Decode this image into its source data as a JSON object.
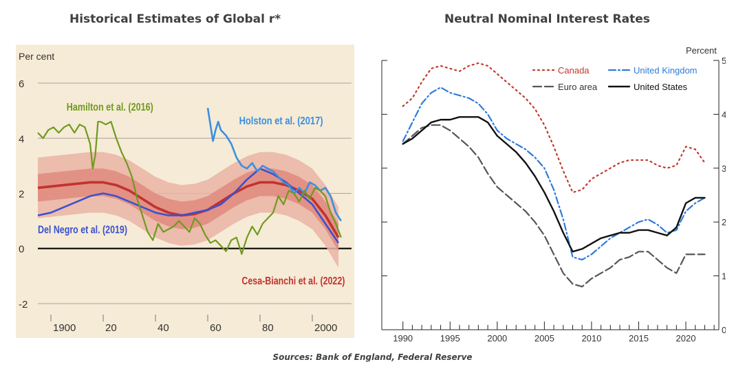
{
  "left_title": "Historical Estimates of Global r*",
  "right_title": "Neutral Nominal Interest Rates",
  "source": "Sources: Bank of England, Federal Reserve",
  "chart_data": [
    {
      "type": "line",
      "title": "Historical Estimates of Global r*",
      "ylabel": "Per cent",
      "xlim": [
        1895,
        2015
      ],
      "ylim": [
        -2.2,
        6.2
      ],
      "y_ticks": [
        -2,
        0,
        2,
        4,
        6
      ],
      "x_ticks": [
        {
          "value": 1900,
          "label": "1900"
        },
        {
          "value": 1920,
          "label": "20"
        },
        {
          "value": 1940,
          "label": "40"
        },
        {
          "value": 1960,
          "label": "60"
        },
        {
          "value": 1980,
          "label": "80"
        },
        {
          "value": 2000,
          "label": "2000"
        }
      ],
      "grid": true,
      "colors": {
        "background": "#f6ebd6",
        "hamilton": "#6e9a1e",
        "holston": "#3a8fe0",
        "delnegro": "#3b50cf",
        "cesa": "#c2322f",
        "band_outer": "#eab4a4",
        "band_inner": "#e08a7e",
        "zero_line": "#111111"
      },
      "series": [
        {
          "name": "Hamilton et al. (2016)",
          "label_x": 1906,
          "label_y": 5.0,
          "x": [
            1895,
            1897,
            1899,
            1901,
            1903,
            1905,
            1907,
            1909,
            1911,
            1913,
            1915,
            1916,
            1917,
            1918,
            1919,
            1921,
            1923,
            1925,
            1927,
            1929,
            1931,
            1933,
            1935,
            1937,
            1939,
            1941,
            1943,
            1945,
            1947,
            1949,
            1951,
            1953,
            1955,
            1957,
            1959,
            1961,
            1963,
            1965,
            1967,
            1969,
            1971,
            1973,
            1975,
            1977,
            1979,
            1981,
            1983,
            1985,
            1987,
            1989,
            1991,
            1993,
            1995,
            1997,
            1999,
            2001,
            2003,
            2005,
            2007,
            2009,
            2011
          ],
          "y": [
            4.2,
            4.0,
            4.3,
            4.4,
            4.2,
            4.4,
            4.5,
            4.2,
            4.5,
            4.4,
            3.8,
            2.9,
            3.4,
            4.6,
            4.6,
            4.5,
            4.6,
            4.0,
            3.5,
            3.1,
            2.6,
            1.8,
            1.2,
            0.6,
            0.3,
            0.9,
            0.6,
            0.7,
            0.8,
            1.0,
            0.8,
            0.6,
            1.1,
            0.9,
            0.5,
            0.2,
            0.3,
            0.1,
            -0.1,
            0.3,
            0.4,
            -0.2,
            0.4,
            0.8,
            0.5,
            0.9,
            1.1,
            1.3,
            1.9,
            1.6,
            2.1,
            2.0,
            1.7,
            2.1,
            1.8,
            2.2,
            2.1,
            1.9,
            1.3,
            0.9,
            0.4
          ]
        },
        {
          "name": "Holston et al. (2017)",
          "label_x": 1972,
          "label_y": 4.5,
          "x": [
            1960,
            1961,
            1962,
            1963,
            1964,
            1965,
            1967,
            1969,
            1971,
            1973,
            1975,
            1977,
            1979,
            1981,
            1983,
            1985,
            1987,
            1989,
            1991,
            1993,
            1995,
            1997,
            1999,
            2001,
            2003,
            2005,
            2007,
            2009,
            2011
          ],
          "y": [
            5.1,
            4.5,
            3.9,
            4.3,
            4.6,
            4.3,
            4.1,
            3.8,
            3.3,
            3.0,
            2.9,
            3.1,
            2.8,
            3.0,
            2.9,
            2.8,
            2.6,
            2.4,
            2.3,
            2.0,
            2.2,
            2.0,
            2.4,
            2.3,
            2.1,
            2.2,
            1.9,
            1.3,
            1.0
          ]
        },
        {
          "name": "Del Negro et al. (2019)",
          "label_x": 1895,
          "label_y": 0.55,
          "x": [
            1895,
            1900,
            1905,
            1910,
            1915,
            1920,
            1925,
            1930,
            1935,
            1940,
            1945,
            1950,
            1955,
            1960,
            1965,
            1970,
            1975,
            1980,
            1985,
            1990,
            1995,
            2000,
            2005,
            2010
          ],
          "y": [
            1.2,
            1.3,
            1.5,
            1.7,
            1.9,
            2.0,
            1.9,
            1.7,
            1.5,
            1.3,
            1.2,
            1.2,
            1.3,
            1.4,
            1.6,
            2.0,
            2.5,
            2.9,
            2.7,
            2.4,
            2.0,
            1.6,
            0.9,
            0.2
          ]
        },
        {
          "name": "Cesa-Bianchi et al. (2022)",
          "label_x": 1973,
          "label_y": -1.3,
          "x": [
            1895,
            1900,
            1905,
            1910,
            1915,
            1920,
            1925,
            1930,
            1935,
            1940,
            1945,
            1950,
            1955,
            1960,
            1965,
            1970,
            1975,
            1980,
            1985,
            1990,
            1995,
            2000,
            2005,
            2010
          ],
          "y": [
            2.2,
            2.25,
            2.3,
            2.35,
            2.4,
            2.4,
            2.3,
            2.1,
            1.8,
            1.5,
            1.3,
            1.2,
            1.25,
            1.4,
            1.7,
            2.0,
            2.25,
            2.4,
            2.4,
            2.3,
            2.1,
            1.8,
            1.2,
            0.4
          ],
          "band_inner_halfwidth": [
            0.5,
            0.5,
            0.5,
            0.5,
            0.5,
            0.5,
            0.5,
            0.5,
            0.5,
            0.5,
            0.5,
            0.5,
            0.5,
            0.5,
            0.5,
            0.5,
            0.5,
            0.5,
            0.5,
            0.5,
            0.5,
            0.5,
            0.5,
            0.5
          ],
          "band_outer_halfwidth": [
            1.1,
            1.1,
            1.1,
            1.1,
            1.1,
            1.1,
            1.1,
            1.1,
            1.1,
            1.1,
            1.1,
            1.1,
            1.1,
            1.1,
            1.1,
            1.1,
            1.1,
            1.1,
            1.1,
            1.1,
            1.1,
            1.1,
            1.1,
            1.1
          ]
        }
      ]
    },
    {
      "type": "line",
      "title": "Neutral Nominal Interest Rates",
      "ylabel": "Percent",
      "xlim": [
        1989,
        2023.5
      ],
      "ylim": [
        0,
        5
      ],
      "y_ticks": [
        0,
        1,
        2,
        3,
        4,
        5
      ],
      "x_ticks": [
        1990,
        1995,
        2000,
        2005,
        2010,
        2015,
        2020
      ],
      "grid": false,
      "legend_position": "top",
      "series": [
        {
          "name": "Canada",
          "style": "dotted",
          "color": "#c0392b",
          "x": [
            1990,
            1991,
            1992,
            1993,
            1994,
            1995,
            1996,
            1997,
            1998,
            1999,
            2000,
            2001,
            2002,
            2003,
            2004,
            2005,
            2006,
            2007,
            2008,
            2009,
            2010,
            2011,
            2012,
            2013,
            2014,
            2015,
            2016,
            2017,
            2018,
            2019,
            2020,
            2021,
            2022
          ],
          "y": [
            4.15,
            4.3,
            4.6,
            4.85,
            4.9,
            4.85,
            4.8,
            4.9,
            4.95,
            4.9,
            4.75,
            4.6,
            4.45,
            4.3,
            4.1,
            3.8,
            3.4,
            2.95,
            2.55,
            2.6,
            2.8,
            2.9,
            3.0,
            3.1,
            3.15,
            3.15,
            3.15,
            3.05,
            3.0,
            3.05,
            3.4,
            3.35,
            3.1
          ]
        },
        {
          "name": "United Kingdom",
          "style": "dashdot",
          "color": "#2f7ad8",
          "x": [
            1990,
            1991,
            1992,
            1993,
            1994,
            1995,
            1996,
            1997,
            1998,
            1999,
            2000,
            2001,
            2002,
            2003,
            2004,
            2005,
            2006,
            2007,
            2008,
            2009,
            2010,
            2011,
            2012,
            2013,
            2014,
            2015,
            2016,
            2017,
            2018,
            2019,
            2020,
            2021,
            2022
          ],
          "y": [
            3.5,
            3.85,
            4.2,
            4.4,
            4.5,
            4.4,
            4.35,
            4.3,
            4.2,
            4.0,
            3.7,
            3.55,
            3.45,
            3.35,
            3.2,
            3.0,
            2.6,
            2.05,
            1.35,
            1.3,
            1.4,
            1.55,
            1.7,
            1.8,
            1.9,
            2.0,
            2.05,
            1.95,
            1.8,
            1.85,
            2.2,
            2.35,
            2.45
          ]
        },
        {
          "name": "Euro area",
          "style": "dashed",
          "color": "#555555",
          "x": [
            1990,
            1991,
            1992,
            1993,
            1994,
            1995,
            1996,
            1997,
            1998,
            1999,
            2000,
            2001,
            2002,
            2003,
            2004,
            2005,
            2006,
            2007,
            2008,
            2009,
            2010,
            2011,
            2012,
            2013,
            2014,
            2015,
            2016,
            2017,
            2018,
            2019,
            2020,
            2021,
            2022
          ],
          "y": [
            3.45,
            3.6,
            3.75,
            3.8,
            3.8,
            3.7,
            3.55,
            3.4,
            3.2,
            2.9,
            2.65,
            2.5,
            2.35,
            2.2,
            2.0,
            1.75,
            1.4,
            1.05,
            0.85,
            0.8,
            0.95,
            1.05,
            1.15,
            1.3,
            1.35,
            1.45,
            1.45,
            1.3,
            1.15,
            1.05,
            1.4,
            1.4,
            1.4
          ]
        },
        {
          "name": "United States",
          "style": "solid",
          "color": "#111111",
          "x": [
            1990,
            1991,
            1992,
            1993,
            1994,
            1995,
            1996,
            1997,
            1998,
            1999,
            2000,
            2001,
            2002,
            2003,
            2004,
            2005,
            2006,
            2007,
            2008,
            2009,
            2010,
            2011,
            2012,
            2013,
            2014,
            2015,
            2016,
            2017,
            2018,
            2019,
            2020,
            2021,
            2022
          ],
          "y": [
            3.45,
            3.55,
            3.7,
            3.85,
            3.9,
            3.9,
            3.95,
            3.95,
            3.95,
            3.85,
            3.6,
            3.45,
            3.3,
            3.1,
            2.85,
            2.55,
            2.2,
            1.8,
            1.45,
            1.5,
            1.6,
            1.7,
            1.75,
            1.8,
            1.8,
            1.85,
            1.85,
            1.8,
            1.75,
            1.9,
            2.35,
            2.45,
            2.45
          ]
        }
      ]
    }
  ]
}
